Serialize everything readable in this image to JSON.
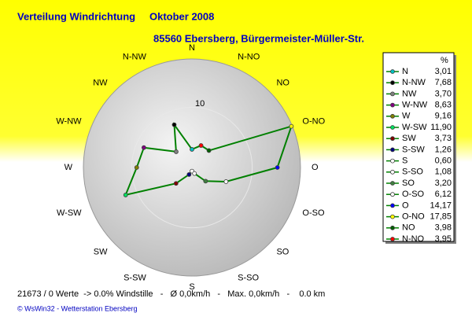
{
  "chart_data": {
    "type": "radar",
    "title": "Verteilung Windrichtung",
    "period": "Oktober 2008",
    "subtitle": "85560 Ebersberg, Bürgermeister-Müller-Str.",
    "legend_header": "%",
    "categories": [
      "N",
      "N-NW",
      "NW",
      "W-NW",
      "W",
      "W-SW",
      "SW",
      "S-SW",
      "S",
      "S-SO",
      "SO",
      "O-SO",
      "O",
      "O-NO",
      "NO",
      "N-NO"
    ],
    "values": [
      3.01,
      7.68,
      3.7,
      8.63,
      9.16,
      11.9,
      3.73,
      1.26,
      0.6,
      1.08,
      3.2,
      6.12,
      14.17,
      17.85,
      3.98,
      3.95
    ],
    "value_labels": [
      "3,01",
      "7,68",
      "3,70",
      "8,63",
      "9,16",
      "11,90",
      "3,73",
      "1,26",
      "0,60",
      "1,08",
      "3,20",
      "6,12",
      "14,17",
      "17,85",
      "3,98",
      "3,95"
    ],
    "colors": [
      "#00c0c0",
      "#000000",
      "#808080",
      "#800080",
      "#808000",
      "#00e060",
      "#800000",
      "#000080",
      "#ffffff",
      "#ffffff",
      "#408040",
      "#ffffff",
      "#0000ff",
      "#ffff00",
      "#006000",
      "#ff0000"
    ],
    "line_color": "#008000",
    "rlim": [
      0,
      18
    ],
    "rticks": [
      10
    ],
    "footer": "21673 / 0 Werte  -> 0.0% Windstille   -   Ø 0,0km/h   -   Max. 0,0km/h   -    0.0 km",
    "copyright": "© WsWin32  -  Wetterstation Ebersberg"
  }
}
